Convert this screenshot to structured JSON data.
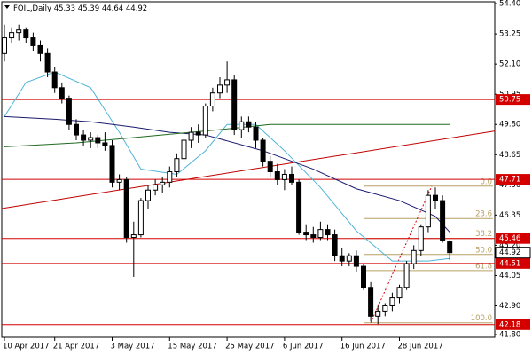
{
  "chart_data": {
    "type": "candlestick",
    "symbol": "FOIL,Daily",
    "categories": [
      "10 Apr 2017",
      null,
      null,
      null,
      null,
      null,
      null,
      "21 Apr 2017",
      null,
      null,
      null,
      null,
      null,
      null,
      null,
      "3 May 2017",
      null,
      null,
      null,
      null,
      null,
      null,
      null,
      "15 May 2017",
      null,
      null,
      null,
      null,
      null,
      null,
      null,
      "25 May 2017",
      null,
      null,
      null,
      null,
      null,
      null,
      null,
      "6 Jun 2017",
      null,
      null,
      null,
      null,
      null,
      null,
      null,
      "16 Jun 2017",
      null,
      null,
      null,
      null,
      null,
      null,
      null,
      "28 Jun 2017",
      null,
      null,
      null,
      null,
      null,
      null,
      null
    ],
    "open": [
      52.5,
      53.1,
      53.3,
      53.4,
      53.1,
      52.8,
      52.5,
      51.8,
      51.2,
      50.8,
      49.8,
      49.4,
      49.2,
      49.3,
      49.1,
      49.0,
      47.6,
      47.7,
      45.5,
      45.6,
      46.9,
      47.3,
      47.5,
      47.6,
      48.0,
      48.5,
      49.2,
      49.5,
      49.4,
      50.5,
      51.0,
      51.3,
      51.5,
      49.6,
      49.9,
      49.7,
      49.2,
      48.4,
      48.0,
      47.7,
      47.9,
      47.6,
      45.7,
      45.6,
      45.5,
      45.8,
      45.6,
      44.8,
      44.6,
      44.8,
      44.4,
      43.6,
      42.5,
      42.7,
      42.9,
      43.2,
      43.6,
      44.5,
      45.0,
      45.9,
      47.1,
      46.9,
      45.33
    ],
    "high": [
      53.6,
      53.5,
      53.6,
      53.5,
      53.3,
      53.0,
      52.7,
      52.0,
      51.4,
      50.9,
      50.0,
      49.6,
      49.5,
      49.4,
      49.5,
      49.2,
      47.9,
      47.8,
      46.1,
      47.0,
      47.5,
      47.7,
      47.8,
      48.2,
      48.7,
      49.4,
      49.7,
      49.8,
      50.6,
      51.2,
      51.6,
      52.2,
      51.7,
      50.1,
      50.1,
      49.9,
      49.3,
      48.6,
      48.3,
      48.1,
      48.2,
      47.7,
      46.0,
      45.9,
      46.1,
      46.0,
      45.8,
      45.1,
      44.9,
      45.0,
      44.5,
      43.8,
      42.9,
      43.0,
      43.4,
      43.7,
      44.6,
      45.2,
      46.0,
      47.3,
      47.4,
      47.1,
      45.39
    ],
    "low": [
      52.2,
      52.9,
      53.0,
      52.9,
      52.6,
      52.2,
      51.6,
      51.0,
      50.6,
      49.6,
      49.2,
      49.0,
      48.9,
      48.9,
      48.8,
      47.4,
      47.3,
      45.3,
      44.0,
      45.5,
      46.6,
      47.1,
      47.2,
      47.4,
      47.8,
      48.3,
      48.9,
      49.1,
      49.3,
      50.3,
      50.8,
      51.0,
      49.4,
      49.3,
      49.5,
      48.9,
      48.2,
      47.8,
      47.5,
      47.3,
      47.5,
      45.6,
      45.4,
      45.3,
      45.4,
      45.4,
      44.6,
      44.4,
      44.4,
      44.2,
      43.5,
      42.3,
      42.2,
      42.5,
      42.7,
      43.0,
      43.5,
      44.3,
      44.8,
      45.7,
      46.6,
      45.3,
      44.64
    ],
    "close": [
      53.1,
      53.3,
      53.4,
      53.1,
      52.8,
      52.5,
      51.8,
      51.2,
      50.8,
      49.8,
      49.4,
      49.2,
      49.3,
      49.1,
      49.0,
      47.6,
      47.7,
      45.5,
      45.6,
      46.9,
      47.3,
      47.5,
      47.6,
      48.0,
      48.5,
      49.2,
      49.5,
      49.4,
      50.5,
      51.0,
      51.3,
      51.5,
      49.6,
      49.9,
      49.7,
      49.2,
      48.4,
      48.0,
      47.7,
      47.9,
      47.6,
      45.7,
      45.6,
      45.5,
      45.8,
      45.6,
      44.8,
      44.6,
      44.8,
      44.4,
      43.6,
      42.5,
      42.7,
      42.9,
      43.2,
      43.6,
      44.5,
      45.0,
      45.9,
      47.1,
      46.9,
      45.4,
      44.92
    ],
    "bull_color": "#ffffff",
    "bear_color": "#000000",
    "ylim": [
      41.7,
      54.47
    ],
    "yticks": [
      {
        "value": 54.4,
        "label": "54.40"
      },
      53.25,
      {
        "value": 52.1,
        "label": "52.10"
      },
      50.95,
      {
        "value": 49.8,
        "label": "49.80"
      },
      48.65,
      {
        "value": 47.5,
        "label": "47.50"
      },
      46.35,
      {
        "value": 45.2,
        "label": "45.20"
      },
      44.05,
      {
        "value": 42.9,
        "label": "42.90"
      },
      {
        "value": 41.8,
        "label": "41.80"
      }
    ],
    "grid": false,
    "moving_averages": [
      {
        "color": "#4fb4d8",
        "x": [
          0,
          3,
          7,
          12,
          16,
          19,
          24,
          28,
          31,
          35,
          39,
          44,
          49,
          54,
          59,
          62
        ],
        "values": [
          50.1,
          51.4,
          51.8,
          51.2,
          49.5,
          48.1,
          47.9,
          48.8,
          49.8,
          49.8,
          48.8,
          47.4,
          45.75,
          44.6,
          44.6,
          44.7
        ]
      },
      {
        "color": "#1a1a6e",
        "x": [
          0,
          7,
          12,
          18,
          23,
          28,
          36,
          43,
          49,
          55,
          60,
          62
        ],
        "values": [
          50.1,
          50.0,
          49.9,
          49.7,
          49.5,
          49.4,
          48.8,
          48.1,
          47.35,
          46.9,
          46.3,
          45.7
        ]
      },
      {
        "color": "#1f6b1f",
        "x": [
          0,
          10,
          20,
          30,
          37,
          62
        ],
        "values": [
          48.95,
          49.1,
          49.35,
          49.6,
          49.8,
          49.8
        ]
      }
    ],
    "levels": {
      "color": "#d40000",
      "values": [
        50.75,
        47.71,
        45.46,
        44.51,
        42.18
      ]
    },
    "trendline": {
      "color": "#c00000",
      "x": [
        -0.4,
        68.3
      ],
      "values": [
        46.6,
        49.55
      ]
    },
    "fibonacci": {
      "color": "#b8a064",
      "x": [
        50,
        68
      ],
      "levels": [
        {
          "label": "0.0",
          "value": 47.45
        },
        {
          "label": "23.6",
          "value": 46.22
        },
        {
          "label": "38.2",
          "value": 45.46
        },
        {
          "label": "50.0",
          "value": 44.85
        },
        {
          "label": "61.8",
          "value": 44.24
        },
        {
          "label": "100.0",
          "value": 42.25
        }
      ],
      "diagonal": {
        "color": "#d40000",
        "x": [
          51,
          59.5
        ],
        "values": [
          42.25,
          47.45
        ]
      }
    }
  }
}
